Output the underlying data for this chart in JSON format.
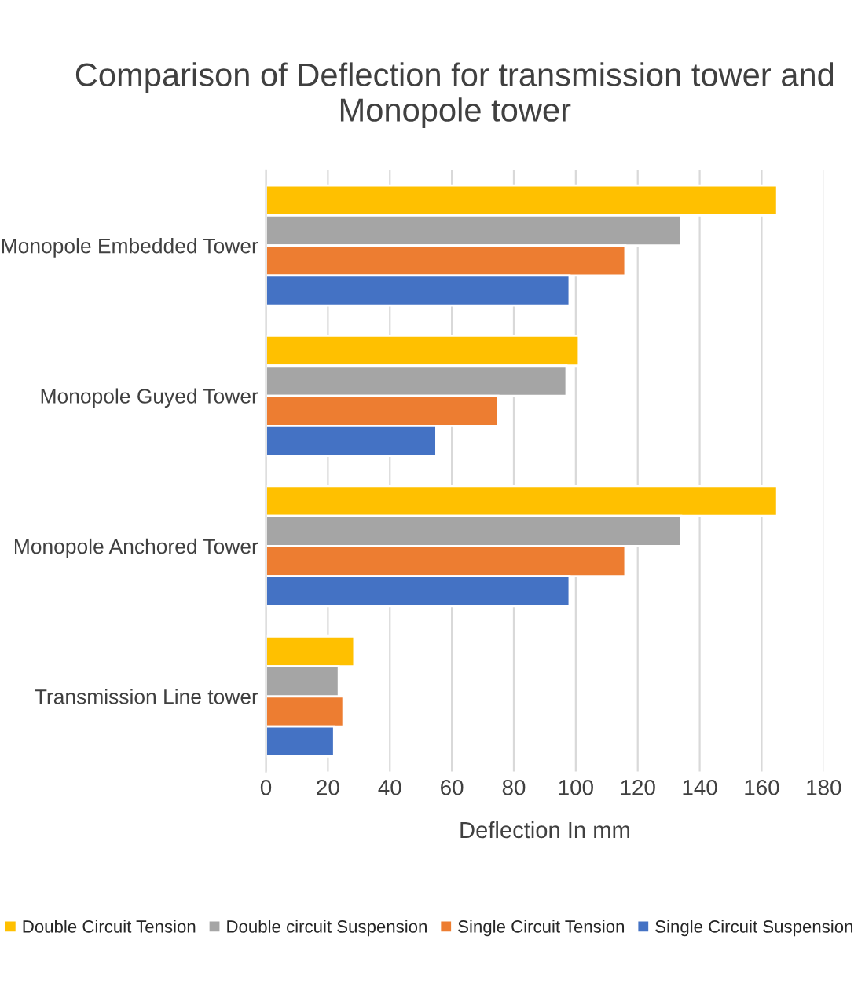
{
  "chart_data": {
    "type": "bar",
    "orientation": "horizontal",
    "title": "Comparison of Deflection for transmission tower and Monopole tower",
    "xlabel": "Deflection In mm",
    "categories": [
      "Monopole Embedded Tower",
      "Monopole Guyed Tower",
      "Monopole Anchored Tower",
      "Transmission Line tower"
    ],
    "series": [
      {
        "name": "Double Circuit Tension",
        "color": "#ffc000",
        "values": [
          165,
          101,
          165,
          28.5
        ]
      },
      {
        "name": "Double circuit Suspension",
        "color": "#a5a5a5",
        "values": [
          134,
          97,
          134,
          23.5
        ]
      },
      {
        "name": "Single Circuit Tension",
        "color": "#ed7d31",
        "values": [
          116,
          75,
          116,
          25
        ]
      },
      {
        "name": "Single Circuit Suspension",
        "color": "#4472c4",
        "values": [
          98,
          55,
          98,
          22
        ]
      }
    ],
    "xlim": [
      0,
      180
    ],
    "xticks": [
      0,
      20,
      40,
      60,
      80,
      100,
      120,
      140,
      160,
      180
    ],
    "grid": "x",
    "legend": "bottom"
  }
}
